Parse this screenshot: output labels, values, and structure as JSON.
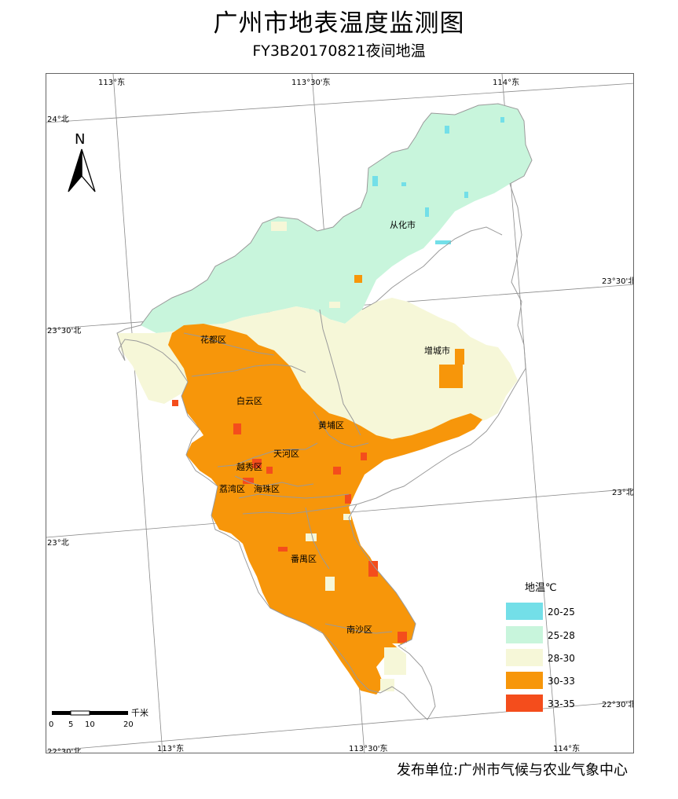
{
  "header": {
    "title": "广州市地表温度监测图",
    "subtitle": "FY3B20170821夜间地温"
  },
  "coords": {
    "top": [
      "113°东",
      "113°30'东",
      "114°东"
    ],
    "bottom": [
      "113°东",
      "113°30'东",
      "114°东"
    ],
    "left": [
      "24°北",
      "23°30'北",
      "23°北",
      "22°30'北"
    ],
    "right": [
      "23°30'北",
      "23°北",
      "22°30'北"
    ]
  },
  "districts": [
    "从化市",
    "花都区",
    "增城市",
    "白云区",
    "黄埔区",
    "天河区",
    "越秀区",
    "荔湾区",
    "海珠区",
    "番禺区",
    "南沙区"
  ],
  "north_arrow": {
    "label": "N"
  },
  "scalebar": {
    "unit": "千米",
    "ticks": [
      "0",
      "5",
      "10",
      "20"
    ]
  },
  "legend": {
    "title": "地温℃",
    "items": [
      {
        "label": "20-25",
        "color": "#73dfe8"
      },
      {
        "label": "25-28",
        "color": "#c8f5dc"
      },
      {
        "label": "28-30",
        "color": "#f6f7d8"
      },
      {
        "label": "30-33",
        "color": "#f7960a"
      },
      {
        "label": "33-35",
        "color": "#f44d1c"
      }
    ]
  },
  "footer": {
    "publisher": "发布单位:广州市气候与农业气象中心"
  }
}
